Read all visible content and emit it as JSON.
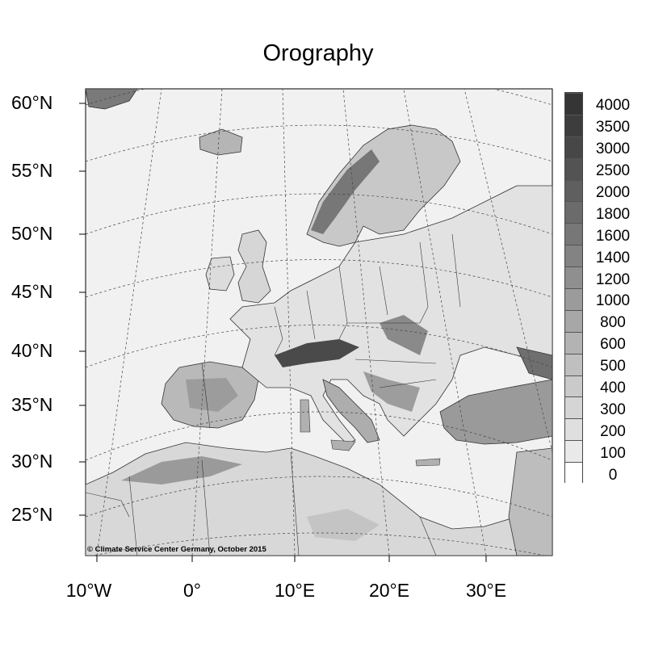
{
  "title": "Orography",
  "copyright": "© Climate Service Center Germany, October 2015",
  "lat_labels": [
    "60°N",
    "55°N",
    "50°N",
    "45°N",
    "40°N",
    "35°N",
    "30°N",
    "25°N"
  ],
  "lon_labels": [
    "10°W",
    "0°",
    "10°E",
    "20°E",
    "30°E"
  ],
  "colorbar": {
    "levels": [
      "4000",
      "3500",
      "3000",
      "2500",
      "2000",
      "1800",
      "1600",
      "1400",
      "1200",
      "1000",
      "800",
      "600",
      "500",
      "400",
      "300",
      "200",
      "100",
      "0"
    ],
    "colors": [
      "#353535",
      "#3d3d3d",
      "#474747",
      "#535353",
      "#5f5f5f",
      "#6b6b6b",
      "#777777",
      "#838383",
      "#8f8f8f",
      "#9b9b9b",
      "#a7a7a7",
      "#b3b3b3",
      "#bfbfbf",
      "#cacaca",
      "#d5d5d5",
      "#dfdfdf",
      "#e9e9e9",
      "#ffffff"
    ]
  },
  "map": {
    "land_color": "#efefef",
    "water_color": "#f3f3f3",
    "unit_hint": "m"
  }
}
